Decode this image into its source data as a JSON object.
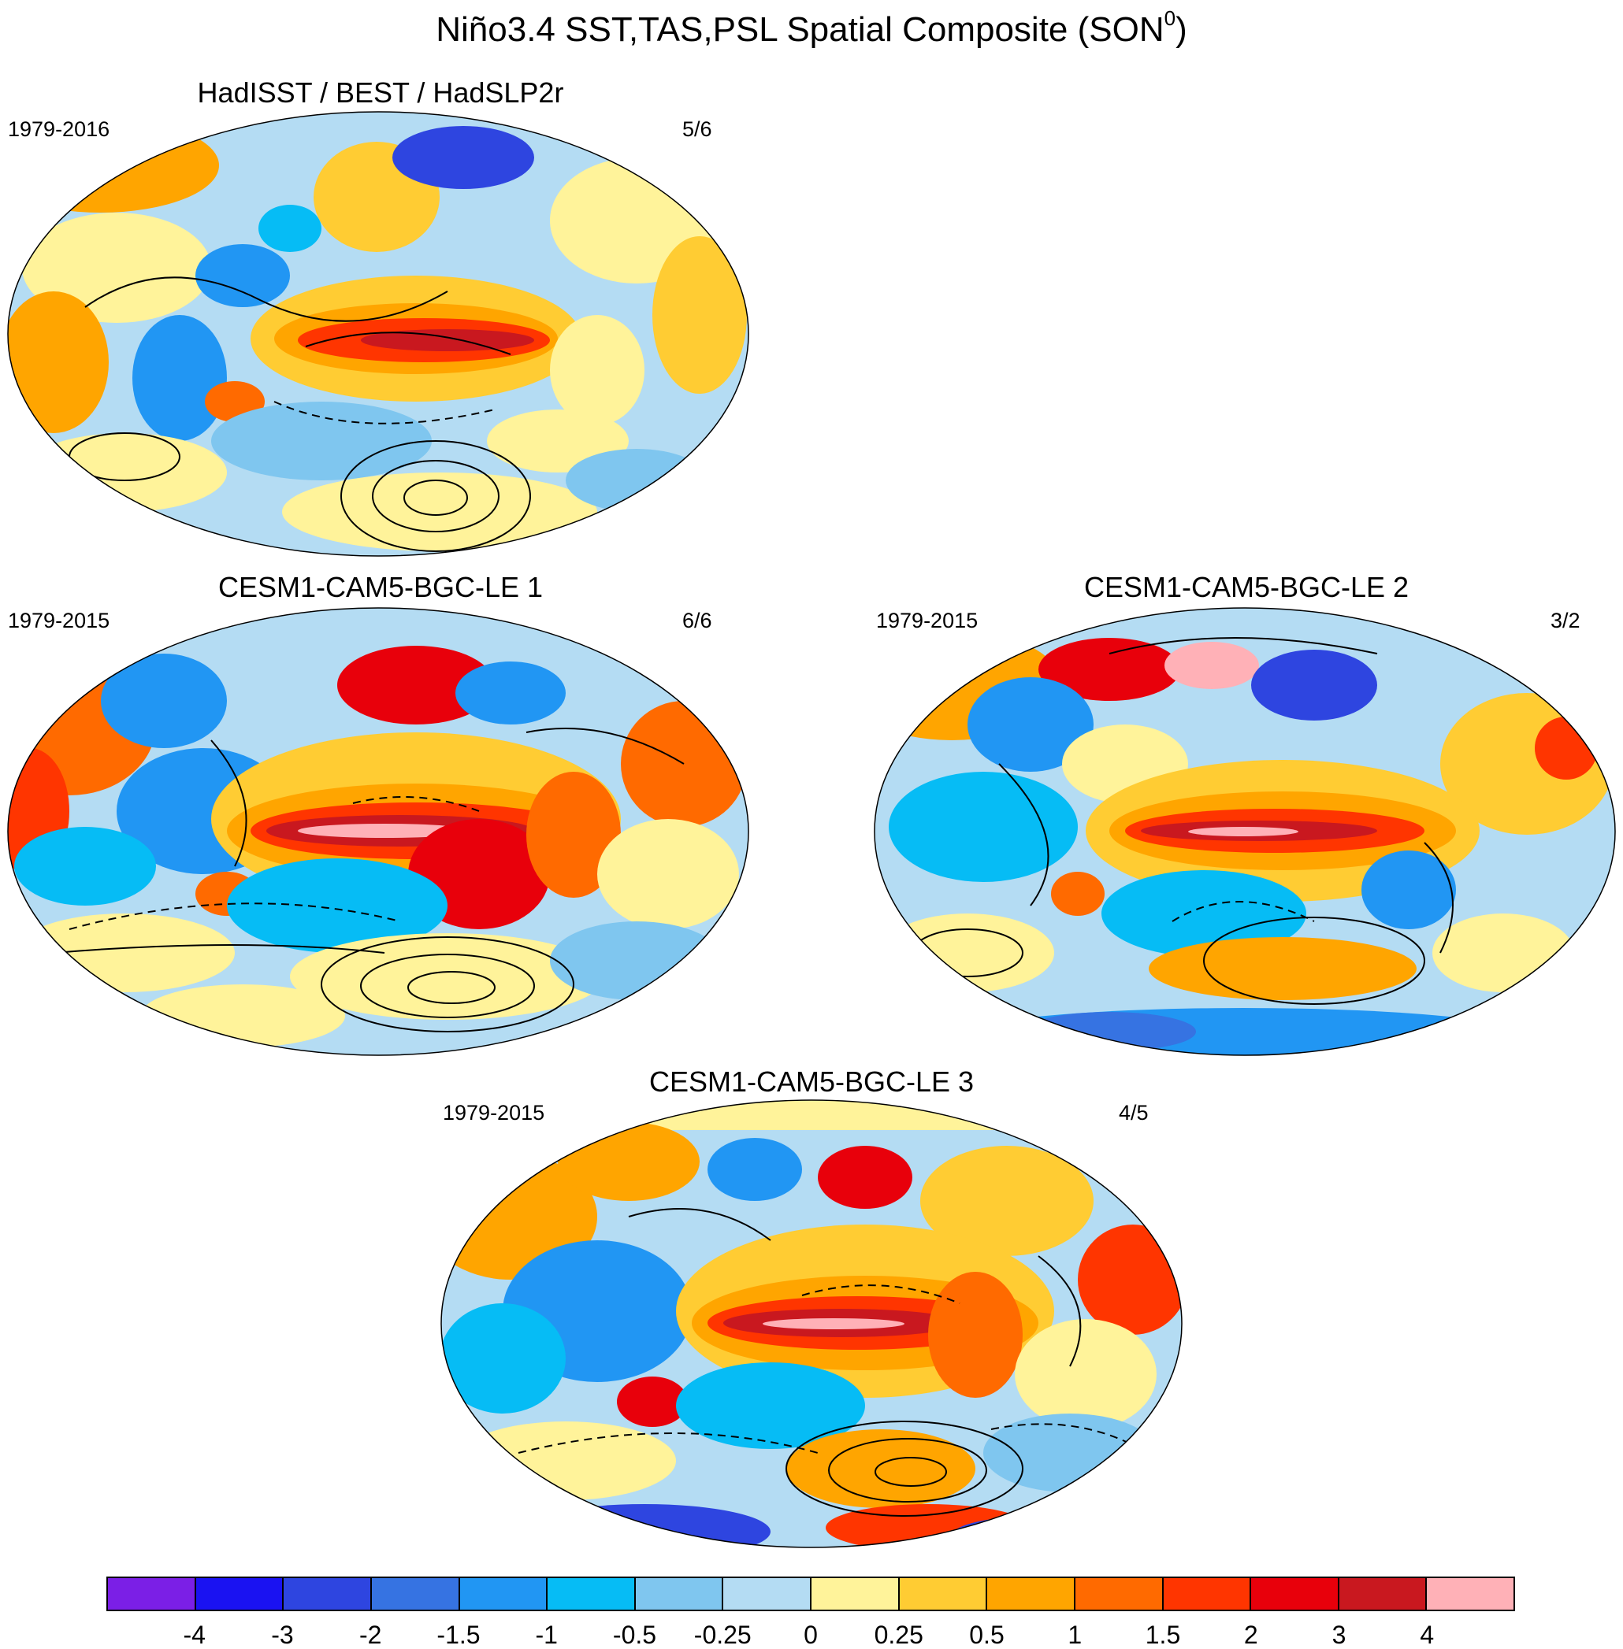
{
  "figure": {
    "title_main": "Niño3.4 SST,TAS,PSL Spatial Composite (SON",
    "title_sup": "0",
    "title_close": ")"
  },
  "panels": [
    {
      "id": "obs",
      "title": "HadISST / BEST / HadSLP2r",
      "period": "1979-2016",
      "count": "5/6"
    },
    {
      "id": "le1",
      "title": "CESM1-CAM5-BGC-LE 1",
      "period": "1979-2015",
      "count": "6/6"
    },
    {
      "id": "le2",
      "title": "CESM1-CAM5-BGC-LE 2",
      "period": "1979-2015",
      "count": "3/2"
    },
    {
      "id": "le3",
      "title": "CESM1-CAM5-BGC-LE 3",
      "period": "1979-2015",
      "count": "4/5"
    }
  ],
  "colorbar": {
    "labels": [
      "-4",
      "-3",
      "-2",
      "-1.5",
      "-1",
      "-0.5",
      "-0.25",
      "0",
      "0.25",
      "0.5",
      "1",
      "1.5",
      "2",
      "3",
      "4"
    ],
    "colors": [
      "#7b1fe6",
      "#1a12f2",
      "#2e45e0",
      "#3673e2",
      "#2196f3",
      "#06bcf5",
      "#7fc6ef",
      "#b4dcf3",
      "#fff39a",
      "#ffcc33",
      "#ffa500",
      "#ff6a00",
      "#ff3500",
      "#e8000b",
      "#c9181f",
      "#ffb1b7"
    ]
  }
}
